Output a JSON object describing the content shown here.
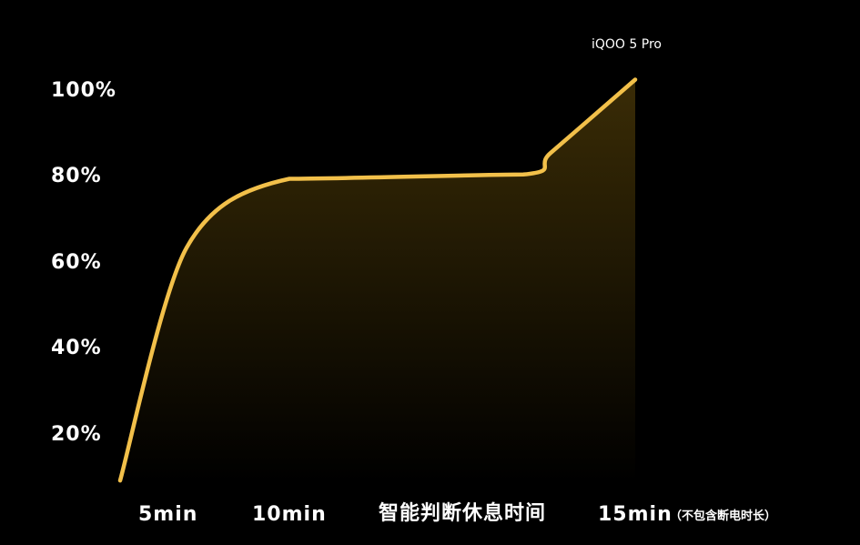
{
  "chart_data": {
    "type": "area",
    "colors": {
      "line": "#F2C04A",
      "fill_top": "#3a2c06",
      "fill_bottom": "#000000",
      "background": "#000000",
      "text": "#ffffff"
    },
    "y_ticks": [
      "20%",
      "40%",
      "60%",
      "80%",
      "100%"
    ],
    "ylim": [
      0,
      100
    ],
    "x_ticks": [
      "5min",
      "10min",
      "智能判断休息时间",
      "15min"
    ],
    "x_note": "（不包含断电时长）",
    "grid": false,
    "series": [
      {
        "name": "iQOO 5 Pro",
        "points": [
          {
            "x": 0,
            "y": 9
          },
          {
            "x": 5,
            "y": 63
          },
          {
            "x": 10,
            "y": 79
          },
          {
            "x": 13,
            "y": 80
          },
          {
            "x": 14,
            "y": 85
          },
          {
            "x": 15,
            "y": 102
          }
        ]
      }
    ]
  }
}
